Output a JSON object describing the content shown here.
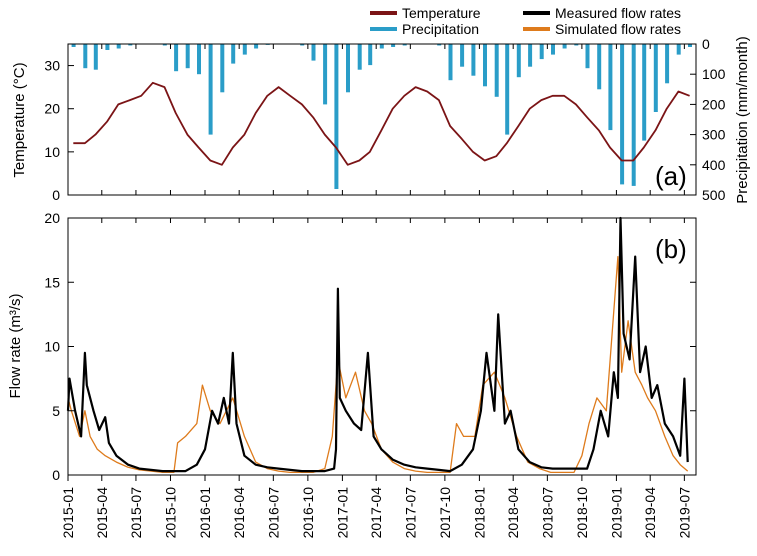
{
  "chart_data": [
    {
      "panel_label": "(a)",
      "type": "line+bar",
      "ylabel_left": "Temperature (°C)",
      "ylabel_right": "Precipitation (mm/month)",
      "ylim_left": [
        0,
        35
      ],
      "ylim_right_inverted": [
        0,
        500
      ],
      "yticks_left": [
        "0",
        "10",
        "20",
        "30"
      ],
      "yticks_right": [
        "0",
        "100",
        "200",
        "300",
        "400",
        "500"
      ],
      "legend": [
        {
          "name": "Temperature",
          "color": "#7b1416"
        },
        {
          "name": "Precipitation",
          "color": "#2a9dc8"
        }
      ],
      "temperature_series": {
        "name": "Temperature",
        "color": "#7b1416",
        "x": [
          "2015-01-15",
          "2015-02-15",
          "2015-03-15",
          "2015-04-15",
          "2015-05-15",
          "2015-06-15",
          "2015-07-15",
          "2015-08-15",
          "2015-09-15",
          "2015-10-15",
          "2015-11-15",
          "2015-12-15",
          "2016-01-15",
          "2016-02-15",
          "2016-03-15",
          "2016-04-15",
          "2016-05-15",
          "2016-06-15",
          "2016-07-15",
          "2016-08-15",
          "2016-09-15",
          "2016-10-15",
          "2016-11-15",
          "2016-12-15",
          "2017-01-15",
          "2017-02-15",
          "2017-03-15",
          "2017-04-15",
          "2017-05-15",
          "2017-06-15",
          "2017-07-15",
          "2017-08-15",
          "2017-09-15",
          "2017-10-15",
          "2017-11-15",
          "2017-12-15",
          "2018-01-15",
          "2018-02-15",
          "2018-03-15",
          "2018-04-15",
          "2018-05-15",
          "2018-06-15",
          "2018-07-15",
          "2018-08-15",
          "2018-09-15",
          "2018-10-15",
          "2018-11-15",
          "2018-12-15",
          "2019-01-15",
          "2019-02-15",
          "2019-03-15",
          "2019-04-15",
          "2019-05-15",
          "2019-06-15",
          "2019-07-15"
        ],
        "values": [
          12,
          12,
          14,
          17,
          21,
          22,
          23,
          26,
          25,
          19,
          14,
          11,
          8,
          7,
          11,
          14,
          19,
          23,
          25,
          23,
          21,
          18,
          14,
          11,
          7,
          8,
          10,
          15,
          20,
          23,
          25,
          24,
          22,
          16,
          13,
          10,
          8,
          9,
          12,
          16,
          20,
          22,
          23,
          23,
          21,
          18,
          15,
          11,
          8,
          8,
          11,
          15,
          20,
          24,
          23
        ]
      },
      "precipitation_bars": {
        "name": "Precipitation",
        "color": "#2a9dc8",
        "x": [
          "2015-01",
          "2015-02",
          "2015-03",
          "2015-04",
          "2015-05",
          "2015-06",
          "2015-07",
          "2015-08",
          "2015-09",
          "2015-10",
          "2015-11",
          "2015-12",
          "2016-01",
          "2016-02",
          "2016-03",
          "2016-04",
          "2016-05",
          "2016-06",
          "2016-07",
          "2016-08",
          "2016-09",
          "2016-10",
          "2016-11",
          "2016-12",
          "2017-01",
          "2017-02",
          "2017-03",
          "2017-04",
          "2017-05",
          "2017-06",
          "2017-07",
          "2017-08",
          "2017-09",
          "2017-10",
          "2017-11",
          "2017-12",
          "2018-01",
          "2018-02",
          "2018-03",
          "2018-04",
          "2018-05",
          "2018-06",
          "2018-07",
          "2018-08",
          "2018-09",
          "2018-10",
          "2018-11",
          "2018-12",
          "2019-01",
          "2019-02",
          "2019-03",
          "2019-04",
          "2019-05",
          "2019-06",
          "2019-07"
        ],
        "values": [
          10,
          80,
          85,
          20,
          15,
          5,
          0,
          0,
          5,
          90,
          80,
          100,
          300,
          160,
          65,
          35,
          15,
          3,
          0,
          0,
          5,
          55,
          200,
          480,
          160,
          85,
          70,
          15,
          10,
          5,
          0,
          0,
          5,
          120,
          75,
          105,
          140,
          175,
          300,
          110,
          75,
          50,
          35,
          15,
          5,
          80,
          150,
          285,
          465,
          470,
          320,
          225,
          130,
          35,
          10
        ]
      }
    },
    {
      "panel_label": "(b)",
      "type": "line",
      "ylabel": "Flow rate (m³/s)",
      "ylim": [
        0,
        20
      ],
      "yticks": [
        "0",
        "5",
        "10",
        "15",
        "20"
      ],
      "xticks": [
        "2015-01",
        "2015-04",
        "2015-07",
        "2015-10",
        "2016-01",
        "2016-04",
        "2016-07",
        "2016-10",
        "2017-01",
        "2017-04",
        "2017-07",
        "2017-10",
        "2018-01",
        "2018-04",
        "2018-07",
        "2018-10",
        "2019-01",
        "2019-04",
        "2019-07"
      ],
      "legend": [
        {
          "name": "Measured flow rates",
          "color": "#000000"
        },
        {
          "name": "Simulated flow rates",
          "color": "#de7b1c"
        }
      ],
      "series": [
        {
          "name": "Measured flow rates",
          "color": "#000000",
          "x": [
            "2015-01-01",
            "2015-01-05",
            "2015-01-20",
            "2015-02-05",
            "2015-02-15",
            "2015-02-20",
            "2015-03-10",
            "2015-03-25",
            "2015-04-10",
            "2015-04-20",
            "2015-05-10",
            "2015-06-10",
            "2015-07-10",
            "2015-08-10",
            "2015-09-10",
            "2015-10-10",
            "2015-11-10",
            "2015-12-10",
            "2016-01-01",
            "2016-01-20",
            "2016-02-05",
            "2016-02-20",
            "2016-03-05",
            "2016-03-15",
            "2016-03-25",
            "2016-04-15",
            "2016-05-15",
            "2016-06-15",
            "2016-07-15",
            "2016-08-15",
            "2016-09-15",
            "2016-10-15",
            "2016-11-15",
            "2016-12-10",
            "2016-12-15",
            "2016-12-20",
            "2016-12-25",
            "2017-01-10",
            "2017-02-01",
            "2017-02-20",
            "2017-03-10",
            "2017-03-25",
            "2017-04-15",
            "2017-05-15",
            "2017-06-15",
            "2017-07-15",
            "2017-08-15",
            "2017-09-15",
            "2017-10-15",
            "2017-11-15",
            "2017-12-15",
            "2018-01-05",
            "2018-01-20",
            "2018-02-10",
            "2018-02-20",
            "2018-03-10",
            "2018-03-25",
            "2018-04-15",
            "2018-05-15",
            "2018-06-15",
            "2018-07-15",
            "2018-08-15",
            "2018-09-15",
            "2018-10-15",
            "2018-11-01",
            "2018-11-20",
            "2018-12-10",
            "2018-12-25",
            "2019-01-05",
            "2019-01-12",
            "2019-01-20",
            "2019-02-05",
            "2019-02-20",
            "2019-03-05",
            "2019-03-20",
            "2019-04-05",
            "2019-04-20",
            "2019-05-10",
            "2019-06-01",
            "2019-06-20",
            "2019-07-01",
            "2019-07-10"
          ],
          "values": [
            5,
            7.5,
            5,
            3,
            9.5,
            7,
            5,
            3.5,
            4.5,
            2.5,
            1.5,
            0.8,
            0.5,
            0.4,
            0.3,
            0.3,
            0.3,
            0.8,
            2,
            5,
            4,
            6,
            4,
            9.5,
            4,
            1.5,
            0.8,
            0.6,
            0.5,
            0.4,
            0.3,
            0.3,
            0.3,
            0.5,
            2,
            14.5,
            6,
            5,
            4,
            3.5,
            9.5,
            3,
            2,
            1.2,
            0.8,
            0.6,
            0.5,
            0.4,
            0.3,
            0.8,
            2,
            5,
            9.5,
            5,
            12.5,
            4,
            5,
            2,
            1,
            0.6,
            0.5,
            0.5,
            0.5,
            0.5,
            2,
            5,
            3,
            8,
            6,
            20,
            11,
            9,
            17,
            8,
            10,
            6,
            7,
            4,
            3,
            1.5,
            7.5,
            1
          ]
        },
        {
          "name": "Simulated flow rates",
          "color": "#de7b1c",
          "x": [
            "2015-01-01",
            "2015-01-10",
            "2015-02-01",
            "2015-02-15",
            "2015-03-01",
            "2015-03-20",
            "2015-04-10",
            "2015-05-10",
            "2015-06-10",
            "2015-07-10",
            "2015-08-10",
            "2015-09-10",
            "2015-10-10",
            "2015-10-20",
            "2015-11-10",
            "2015-12-10",
            "2015-12-25",
            "2016-01-15",
            "2016-02-10",
            "2016-03-15",
            "2016-04-15",
            "2016-05-15",
            "2016-06-15",
            "2016-07-15",
            "2016-08-15",
            "2016-09-15",
            "2016-10-15",
            "2016-11-15",
            "2016-12-05",
            "2016-12-20",
            "2017-01-10",
            "2017-02-05",
            "2017-03-01",
            "2017-03-20",
            "2017-04-15",
            "2017-05-15",
            "2017-06-15",
            "2017-07-15",
            "2017-08-15",
            "2017-09-15",
            "2017-10-15",
            "2017-11-01",
            "2017-11-20",
            "2017-12-20",
            "2018-01-10",
            "2018-02-10",
            "2018-03-10",
            "2018-04-10",
            "2018-05-10",
            "2018-06-10",
            "2018-07-10",
            "2018-08-10",
            "2018-09-10",
            "2018-10-01",
            "2018-10-20",
            "2018-11-10",
            "2018-12-05",
            "2019-01-05",
            "2019-01-15",
            "2019-02-01",
            "2019-02-20",
            "2019-03-10",
            "2019-03-25",
            "2019-04-15",
            "2019-05-10",
            "2019-06-01",
            "2019-06-20",
            "2019-07-10"
          ],
          "values": [
            6,
            5,
            3,
            5,
            3,
            2,
            1.5,
            1,
            0.6,
            0.4,
            0.3,
            0.2,
            0.2,
            2.5,
            3,
            4,
            7,
            5,
            4,
            6,
            3,
            1,
            0.5,
            0.3,
            0.2,
            0.2,
            0.2,
            0.5,
            3,
            9,
            6,
            8,
            5,
            4,
            2,
            1,
            0.5,
            0.3,
            0.2,
            0.2,
            0.2,
            4,
            3,
            3,
            7,
            8,
            6,
            3,
            1,
            0.5,
            0.2,
            0.2,
            0.2,
            1.5,
            4,
            6,
            5,
            17,
            8,
            12,
            8,
            7,
            6,
            5,
            3,
            1.5,
            0.8,
            0.3
          ]
        }
      ]
    }
  ]
}
